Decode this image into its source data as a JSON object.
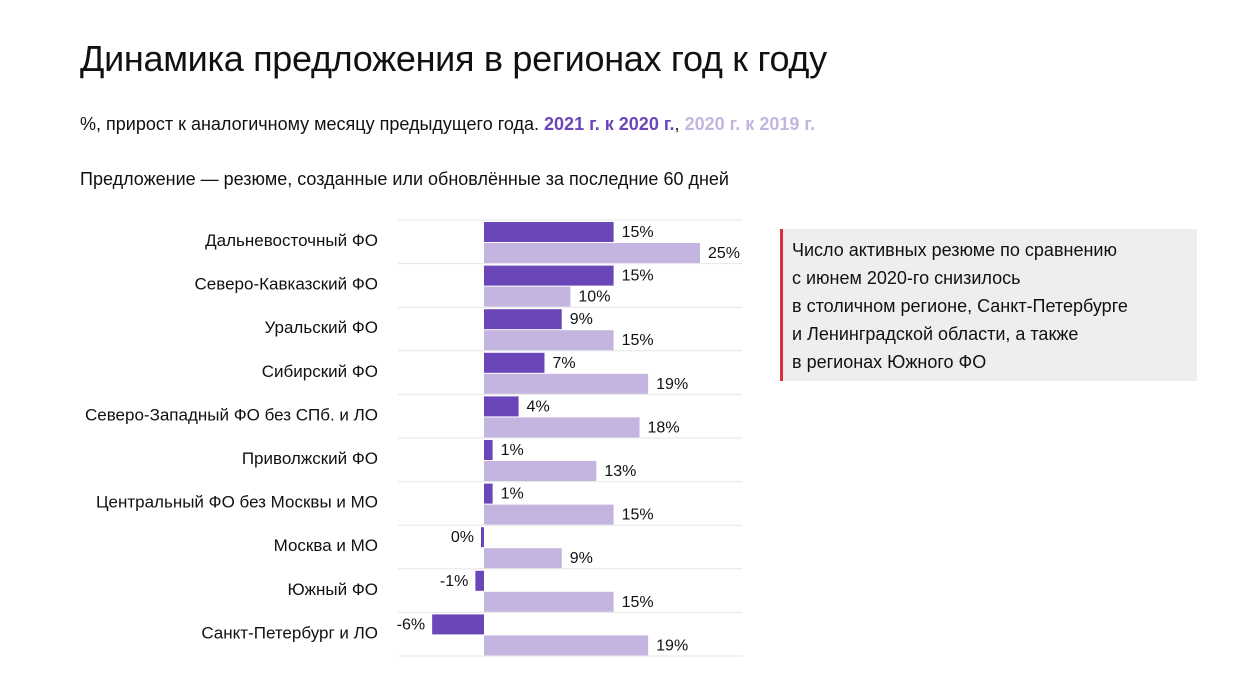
{
  "title": "Динамика предложения в регионах год к году",
  "subtitle": {
    "prefix": "%, прирост к аналогичному месяцу предыдущего года. ",
    "series1_label": "2021 г. к 2020 г.",
    "separator": ",",
    "series2_label": "2020 г. к 2019 г."
  },
  "note": "Предложение — резюме, созданные или обновлённые за последние 60 дней",
  "callout": {
    "lines": [
      "Число активных резюме по сравнению",
      "с июнем 2020-го снизилось",
      "в столичном регионе, Санкт-Петербурге",
      "и Ленинградской области, а также",
      "в регионах Южного ФО"
    ]
  },
  "colors": {
    "series1": "#6b46b8",
    "series2": "#c4b5e0",
    "grid": "#e6e6e6",
    "callout_bg": "#eeeeee",
    "callout_border": "#d9303a"
  },
  "chart_data": {
    "type": "bar",
    "orientation": "horizontal",
    "categories": [
      "Дальневосточный ФО",
      "Северо-Кавказский ФО",
      "Уральский ФО",
      "Сибирский ФО",
      "Северо-Западный ФО без СПб. и ЛО",
      "Приволжский ФО",
      "Центральный ФО без Москвы и МО",
      "Москва и МО",
      "Южный ФО",
      "Санкт-Петербург и ЛО"
    ],
    "series": [
      {
        "name": "2021 г. к 2020 г.",
        "values": [
          15,
          15,
          9,
          7,
          4,
          1,
          1,
          0,
          -1,
          -6
        ],
        "labels": [
          "15%",
          "15%",
          "9%",
          "7%",
          "4%",
          "1%",
          "1%",
          "0%",
          "-1%",
          "-6%"
        ]
      },
      {
        "name": "2020 г. к 2019 г.",
        "values": [
          25,
          10,
          15,
          19,
          18,
          13,
          15,
          9,
          15,
          19
        ],
        "labels": [
          "25%",
          "10%",
          "15%",
          "19%",
          "18%",
          "13%",
          "15%",
          "9%",
          "15%",
          "19%"
        ]
      }
    ],
    "xlim": [
      -10,
      30
    ],
    "grid": true,
    "unit": "%"
  }
}
